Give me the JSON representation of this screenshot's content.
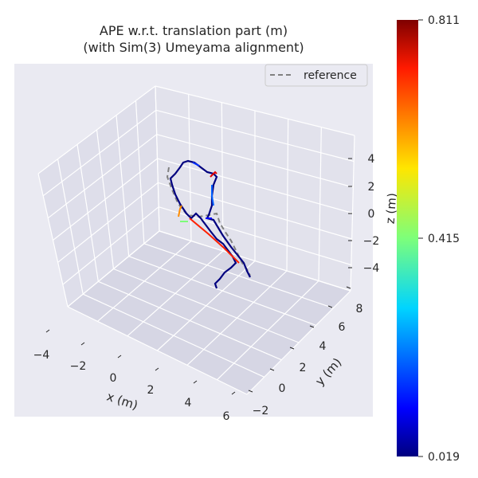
{
  "chart_data": {
    "type": "line",
    "projection": "3d",
    "title": "APE w.r.t. translation part (m)",
    "subtitle": "(with Sim(3) Umeyama alignment)",
    "xlabel": "x (m)",
    "ylabel": "y (m)",
    "zlabel": "z (m)",
    "xticks": [
      "−4",
      "−2",
      "0",
      "2",
      "4",
      "6"
    ],
    "yticks": [
      "−2",
      "0",
      "2",
      "4",
      "6",
      "8"
    ],
    "zticks": [
      "4",
      "2",
      "0",
      "−2",
      "−4"
    ],
    "legend": {
      "entries": [
        "reference"
      ],
      "position": "top-right",
      "style": "dashed",
      "color": "#808080"
    },
    "colorbar": {
      "colormap": "jet",
      "min": 0.019,
      "max": 0.811,
      "ticks": [
        "0.811",
        "0.415",
        "0.019"
      ]
    },
    "grid": true,
    "background": "#e5e5ef",
    "reference_color": "#808080",
    "trajectory_color": "#00007f"
  }
}
